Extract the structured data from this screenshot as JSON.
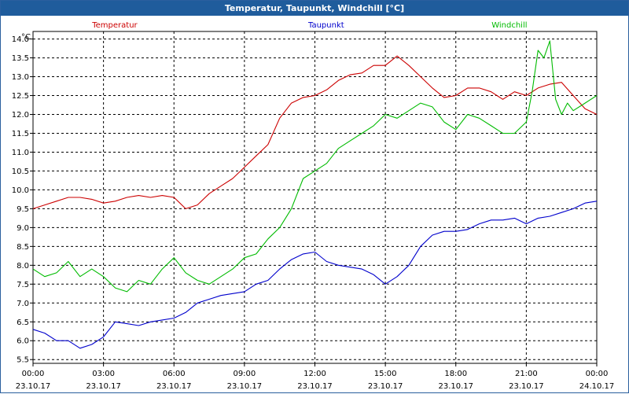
{
  "window": {
    "title": "Temperatur, Taupunkt, Windchill [°C]"
  },
  "chart_data": {
    "type": "line",
    "title": "Temperatur, Taupunkt, Windchill [°C]",
    "ylabel": "°C",
    "xlabel": "",
    "xlim": [
      0,
      24
    ],
    "ylim": [
      5.4,
      14.2
    ],
    "grid": true,
    "legend_position": "top",
    "x_ticks": [
      {
        "x": 0,
        "time": "00:00",
        "date": "23.10.17"
      },
      {
        "x": 3,
        "time": "03:00",
        "date": "23.10.17"
      },
      {
        "x": 6,
        "time": "06:00",
        "date": "23.10.17"
      },
      {
        "x": 9,
        "time": "09:00",
        "date": "23.10.17"
      },
      {
        "x": 12,
        "time": "12:00",
        "date": "23.10.17"
      },
      {
        "x": 15,
        "time": "15:00",
        "date": "23.10.17"
      },
      {
        "x": 18,
        "time": "18:00",
        "date": "23.10.17"
      },
      {
        "x": 21,
        "time": "21:00",
        "date": "23.10.17"
      },
      {
        "x": 24,
        "time": "00:00",
        "date": "24.10.17"
      }
    ],
    "y_ticks": [
      "5.5",
      "6.0",
      "6.5",
      "7.0",
      "7.5",
      "8.0",
      "8.5",
      "9.0",
      "9.5",
      "10.0",
      "10.5",
      "11.0",
      "11.5",
      "12.0",
      "12.5",
      "13.0",
      "13.5",
      "14.0"
    ],
    "series": [
      {
        "name": "Temperatur",
        "color": "#cc0000",
        "x": [
          0,
          0.5,
          1,
          1.5,
          2,
          2.5,
          3,
          3.5,
          4,
          4.5,
          5,
          5.5,
          6,
          6.5,
          7,
          7.5,
          8,
          8.5,
          9,
          9.5,
          10,
          10.5,
          11,
          11.5,
          12,
          12.5,
          13,
          13.5,
          14,
          14.5,
          15,
          15.5,
          16,
          16.5,
          17,
          17.5,
          18,
          18.5,
          19,
          19.5,
          20,
          20.5,
          21,
          21.5,
          22,
          22.5,
          23,
          23.5,
          24
        ],
        "values": [
          9.5,
          9.6,
          9.7,
          9.8,
          9.8,
          9.75,
          9.65,
          9.7,
          9.8,
          9.85,
          9.8,
          9.85,
          9.8,
          9.5,
          9.6,
          9.9,
          10.1,
          10.3,
          10.6,
          10.9,
          11.2,
          11.9,
          12.3,
          12.45,
          12.5,
          12.65,
          12.9,
          13.05,
          13.1,
          13.3,
          13.3,
          13.55,
          13.3,
          13.0,
          12.7,
          12.45,
          12.5,
          12.7,
          12.7,
          12.6,
          12.4,
          12.6,
          12.5,
          12.7,
          12.8,
          12.85,
          12.5,
          12.15,
          12.0
        ]
      },
      {
        "name": "Taupunkt",
        "color": "#0000cc",
        "x": [
          0,
          0.5,
          1,
          1.5,
          2,
          2.5,
          3,
          3.5,
          4,
          4.5,
          5,
          5.5,
          6,
          6.5,
          7,
          7.5,
          8,
          8.5,
          9,
          9.5,
          10,
          10.5,
          11,
          11.5,
          12,
          12.5,
          13,
          13.5,
          14,
          14.5,
          15,
          15.5,
          16,
          16.5,
          17,
          17.5,
          18,
          18.5,
          19,
          19.5,
          20,
          20.5,
          21,
          21.5,
          22,
          22.5,
          23,
          23.5,
          24
        ],
        "values": [
          6.3,
          6.2,
          6.0,
          6.0,
          5.8,
          5.9,
          6.1,
          6.5,
          6.45,
          6.4,
          6.5,
          6.55,
          6.6,
          6.75,
          7.0,
          7.1,
          7.2,
          7.25,
          7.3,
          7.5,
          7.6,
          7.9,
          8.15,
          8.3,
          8.35,
          8.1,
          8.0,
          7.95,
          7.9,
          7.75,
          7.5,
          7.7,
          8.0,
          8.5,
          8.8,
          8.9,
          8.9,
          8.95,
          9.1,
          9.2,
          9.2,
          9.25,
          9.1,
          9.25,
          9.3,
          9.4,
          9.5,
          9.65,
          9.7
        ]
      },
      {
        "name": "Windchill",
        "color": "#00bb00",
        "x": [
          0,
          0.5,
          1,
          1.5,
          2,
          2.5,
          3,
          3.5,
          4,
          4.5,
          5,
          5.5,
          6,
          6.5,
          7,
          7.5,
          8,
          8.5,
          9,
          9.5,
          10,
          10.5,
          11,
          11.5,
          12,
          12.5,
          13,
          13.5,
          14,
          14.5,
          15,
          15.5,
          16,
          16.5,
          17,
          17.5,
          18,
          18.5,
          19,
          19.5,
          20,
          20.5,
          21,
          21.25,
          21.5,
          21.75,
          22,
          22.25,
          22.5,
          22.75,
          23,
          23.5,
          24
        ],
        "values": [
          7.9,
          7.7,
          7.8,
          8.1,
          7.7,
          7.9,
          7.7,
          7.4,
          7.3,
          7.6,
          7.5,
          7.9,
          8.2,
          7.8,
          7.6,
          7.5,
          7.7,
          7.9,
          8.2,
          8.3,
          8.7,
          9.0,
          9.5,
          10.3,
          10.5,
          10.7,
          11.1,
          11.3,
          11.5,
          11.7,
          12.0,
          11.9,
          12.1,
          12.3,
          12.2,
          11.8,
          11.6,
          12.0,
          11.9,
          11.7,
          11.5,
          11.5,
          11.8,
          12.6,
          13.7,
          13.5,
          13.95,
          12.4,
          12.0,
          12.3,
          12.1,
          12.3,
          12.5
        ]
      }
    ]
  }
}
